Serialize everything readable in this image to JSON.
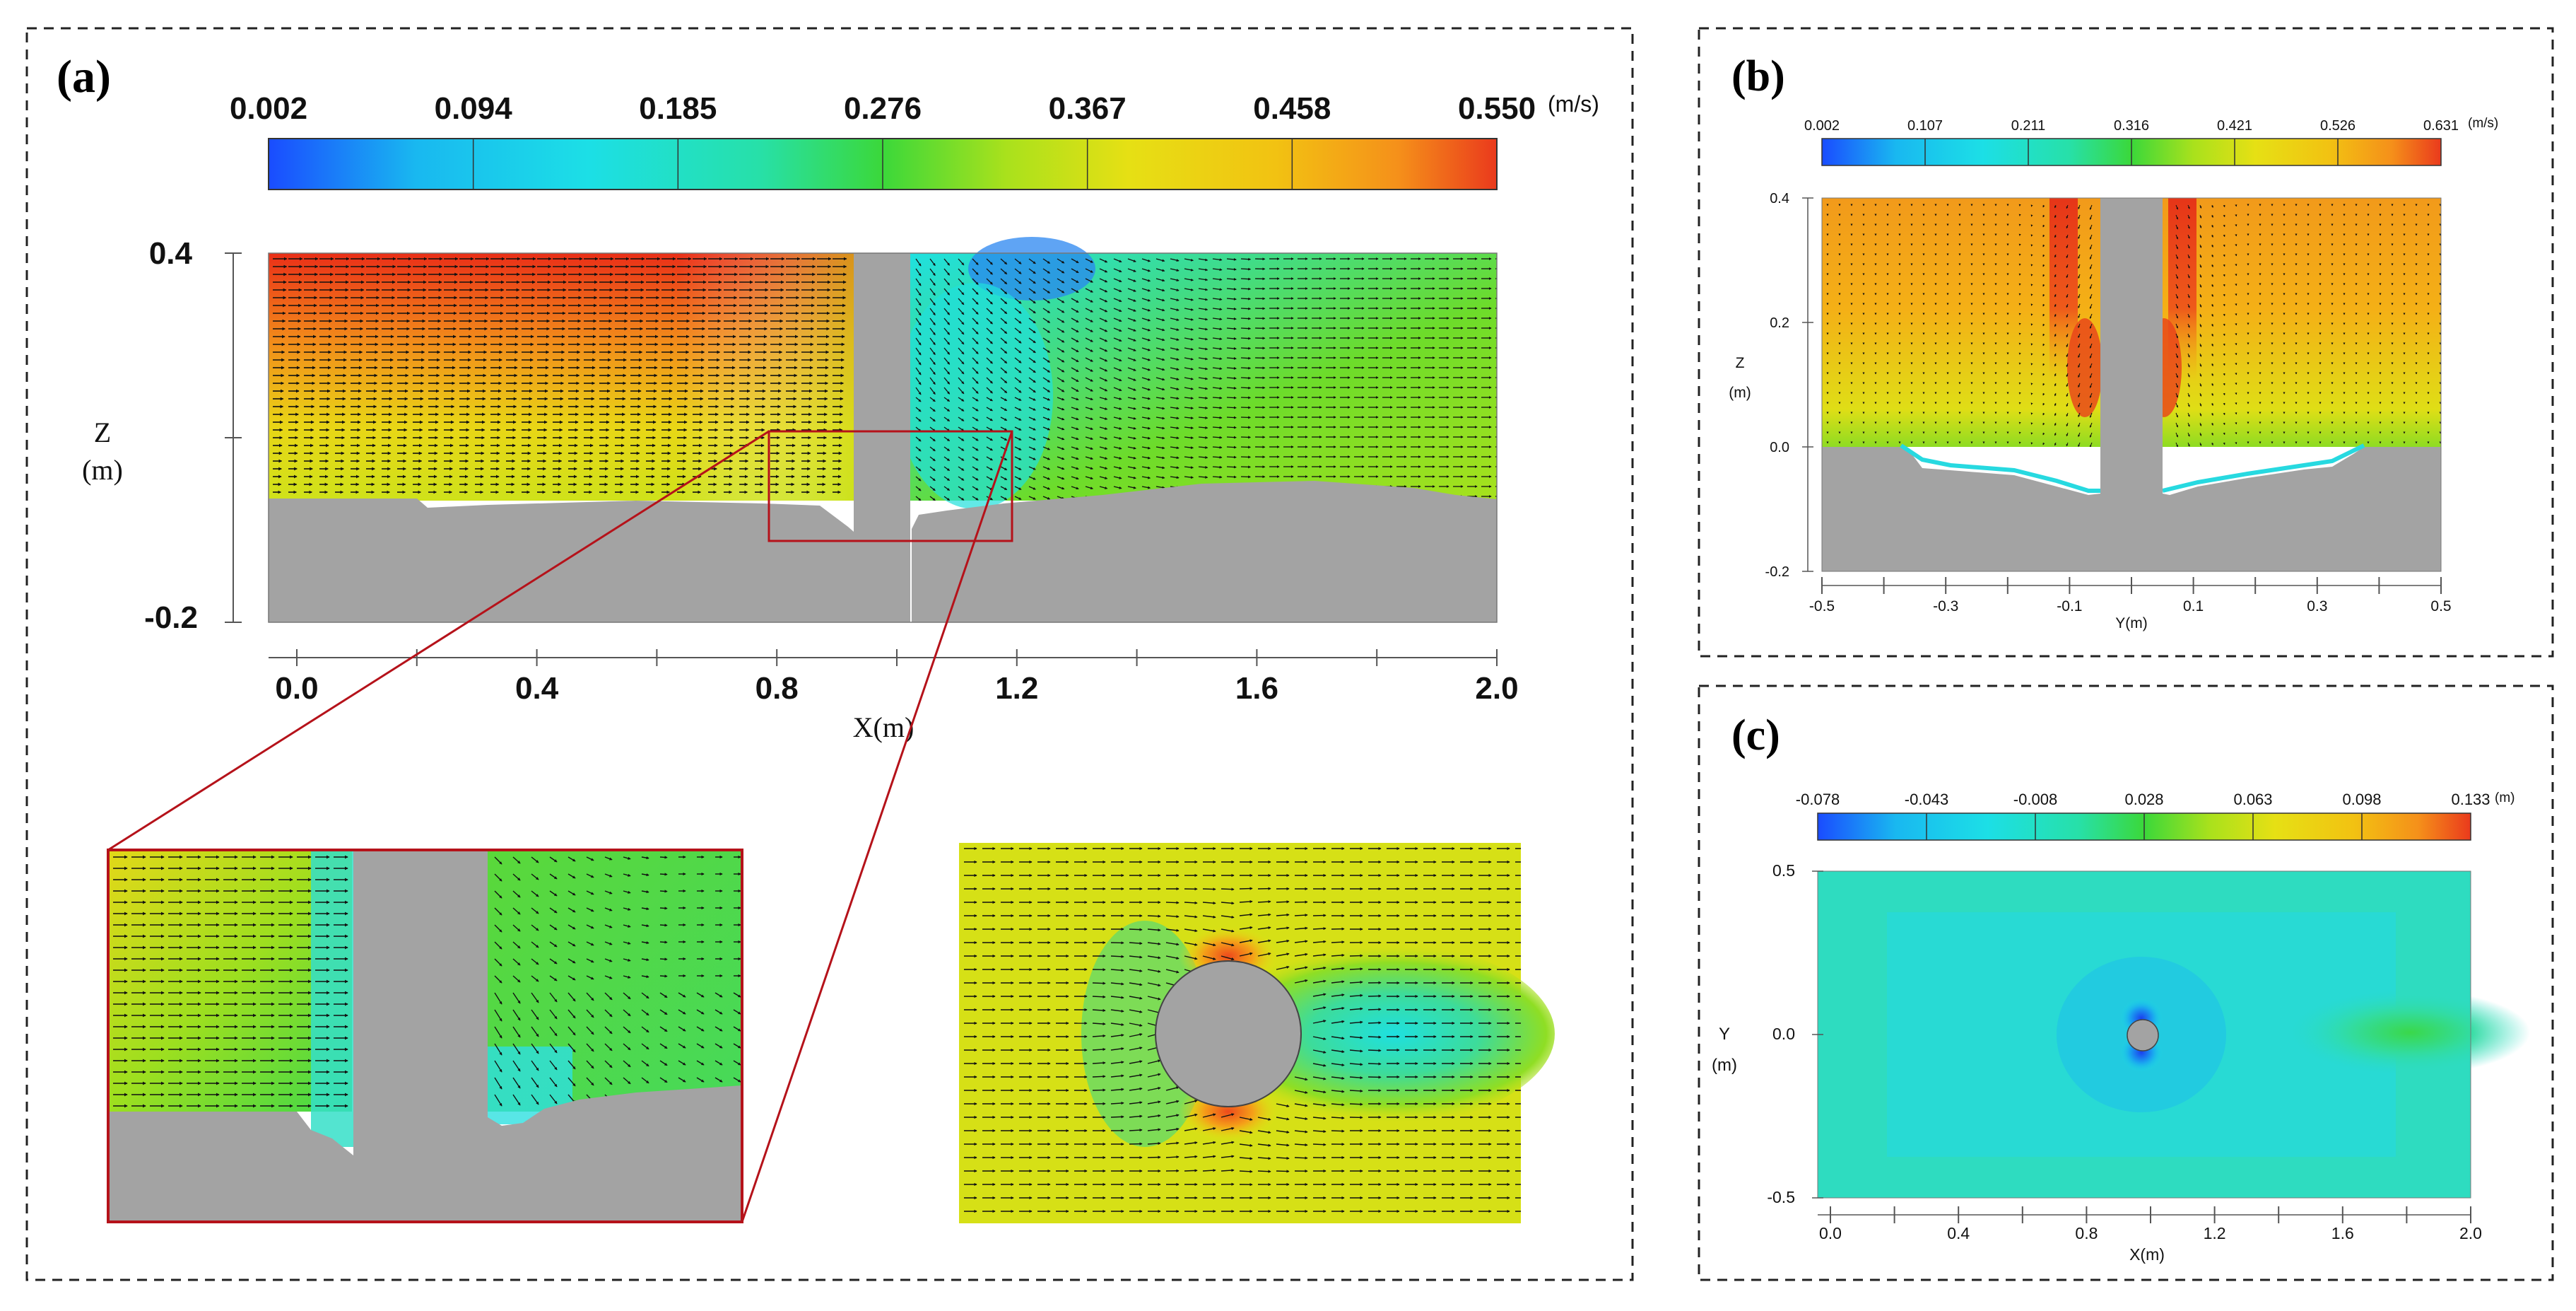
{
  "colors": {
    "ramp": [
      "#1a4cff",
      "#19b8f0",
      "#1cdfe6",
      "#27e0a8",
      "#3bd83a",
      "#a9e11c",
      "#e6e014",
      "#f2c212",
      "#f5901a",
      "#ea3a1c"
    ],
    "solid": "#a3a3a3",
    "zoom_frame": "#c0141a",
    "arrow": "#111111"
  },
  "panel_a": {
    "label": "(a)",
    "colorbar": {
      "ticks": [
        "0.002",
        "0.094",
        "0.185",
        "0.276",
        "0.367",
        "0.458",
        "0.550"
      ],
      "unit": "(m/s)"
    },
    "z_axis": {
      "title_line1": "Z",
      "title_line2": "(m)",
      "ticks": [
        "0.4",
        "-0.2"
      ],
      "range": [
        -0.2,
        0.4
      ]
    },
    "x_axis": {
      "title": "X(m)",
      "ticks": [
        "0.0",
        "0.4",
        "0.8",
        "1.2",
        "1.6",
        "2.0"
      ],
      "range": [
        0.0,
        2.0
      ]
    },
    "bed_level_m": 0.0,
    "pier_center_x_m": 1.0
  },
  "panel_b": {
    "label": "(b)",
    "colorbar": {
      "ticks": [
        "0.002",
        "0.107",
        "0.211",
        "0.316",
        "0.421",
        "0.526",
        "0.631"
      ],
      "unit": "(m/s)"
    },
    "z_axis": {
      "title_line1": "Z",
      "title_line2": "(m)",
      "ticks": [
        "0.4",
        "0.2",
        "0.0",
        "-0.2"
      ],
      "range": [
        -0.2,
        0.4
      ]
    },
    "y_axis": {
      "title": "Y(m)",
      "ticks": [
        "-0.5",
        "-0.3",
        "-0.1",
        "0.1",
        "0.3",
        "0.5"
      ],
      "range": [
        -0.5,
        0.5
      ]
    }
  },
  "panel_c": {
    "label": "(c)",
    "colorbar": {
      "ticks": [
        "-0.078",
        "-0.043",
        "-0.008",
        "0.028",
        "0.063",
        "0.098",
        "0.133"
      ],
      "unit": "(m)"
    },
    "y_axis": {
      "title_line1": "Y",
      "title_line2": "(m)",
      "ticks": [
        "0.5",
        "0.0",
        "-0.5"
      ],
      "range": [
        -0.5,
        0.5
      ]
    },
    "x_axis": {
      "title": "X(m)",
      "ticks": [
        "0.0",
        "0.4",
        "0.8",
        "1.2",
        "1.6",
        "2.0"
      ],
      "range": [
        0.0,
        2.0
      ]
    }
  }
}
